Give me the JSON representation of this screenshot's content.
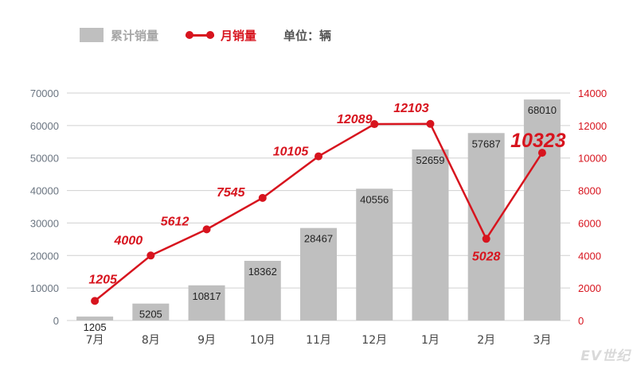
{
  "legend": {
    "bar_label": "累计销量",
    "line_label": "月销量",
    "unit_label": "单位：辆"
  },
  "watermark": "EV世纪",
  "colors": {
    "bar": "#bfbfbf",
    "line": "#d7141e",
    "axis_text": "#6a7480",
    "grid": "#d0d0d0"
  },
  "chart_data": {
    "type": "bar+line",
    "categories": [
      "7月",
      "8月",
      "9月",
      "10月",
      "11月",
      "12月",
      "1月",
      "2月",
      "3月"
    ],
    "series": [
      {
        "name": "累计销量",
        "type": "bar",
        "axis": "left",
        "values": [
          1205,
          5205,
          10817,
          18362,
          28467,
          40556,
          52659,
          57687,
          68010
        ]
      },
      {
        "name": "月销量",
        "type": "line",
        "axis": "right",
        "values": [
          1205,
          4000,
          5612,
          7545,
          10105,
          12089,
          12103,
          5028,
          10323
        ]
      }
    ],
    "y_left": {
      "min": 0,
      "max": 70000,
      "ticks": [
        0,
        10000,
        20000,
        30000,
        40000,
        50000,
        60000,
        70000
      ]
    },
    "y_right": {
      "min": 0,
      "max": 14000,
      "ticks": [
        0,
        2000,
        4000,
        6000,
        8000,
        10000,
        12000,
        14000
      ]
    },
    "grid": true,
    "legend_position": "top-left"
  }
}
